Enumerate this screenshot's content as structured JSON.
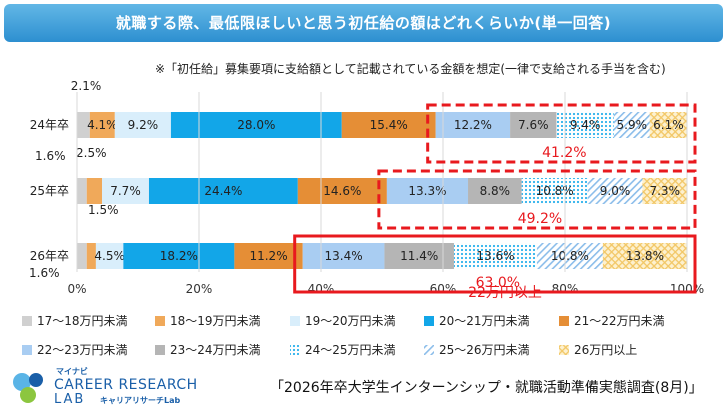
{
  "header": {
    "title": "就職する際、最低限ほしいと思う初任給の額はどれくらいか(単一回答)",
    "note": "※「初任給」募集要項に支給額として記載されている金額を想定(一律で支給される手当を含む)"
  },
  "footer": {
    "survey_title": "「2026年卒大学生インターンシップ・就職活動準備実態調査(8月)」",
    "logo_top": "マイナビ",
    "logo_line1": "CAREER RESEARCH",
    "logo_line2": "LAB",
    "logo_sub": "キャリアリサーチLab"
  },
  "chart_data": {
    "type": "stacked-bar-horizontal",
    "title": "就職する際、最低限ほしいと思う初任給の額はどれくらいか(単一回答)",
    "categories": [
      "24年卒",
      "25年卒",
      "26年卒"
    ],
    "x_ticks": [
      "0%",
      "20%",
      "40%",
      "60%",
      "80%",
      "100%"
    ],
    "xlim": [
      0,
      100
    ],
    "series": [
      {
        "name": "17～18万円未満",
        "color": "#d0d0d0",
        "values": [
          2.1,
          1.6,
          1.6
        ],
        "labels": [
          "2.1%",
          "1.6%",
          "1.6%"
        ],
        "pattern": "solid"
      },
      {
        "name": "18～19万円未満",
        "color": "#f0a95a",
        "values": [
          4.1,
          2.5,
          1.5
        ],
        "labels": [
          "4.1%",
          "2.5%",
          "1.5%"
        ],
        "pattern": "solid"
      },
      {
        "name": "19～20万円未満",
        "color": "#d9eefb",
        "values": [
          9.2,
          7.7,
          4.5
        ],
        "labels": [
          "9.2%",
          "7.7%",
          "4.5%"
        ],
        "pattern": "solid"
      },
      {
        "name": "20～21万円未満",
        "color": "#12a6e8",
        "values": [
          28.0,
          24.4,
          18.2
        ],
        "labels": [
          "28.0%",
          "24.4%",
          "18.2%"
        ],
        "pattern": "solid"
      },
      {
        "name": "21～22万円未満",
        "color": "#e58e36",
        "values": [
          15.4,
          14.6,
          11.2
        ],
        "labels": [
          "15.4%",
          "14.6%",
          "11.2%"
        ],
        "pattern": "solid"
      },
      {
        "name": "22～23万円未満",
        "color": "#a9cdf2",
        "values": [
          12.2,
          13.3,
          13.4
        ],
        "labels": [
          "12.2%",
          "13.3%",
          "13.4%"
        ],
        "pattern": "solid"
      },
      {
        "name": "23～24万円未満",
        "color": "#b5b5b5",
        "values": [
          7.6,
          8.8,
          11.4
        ],
        "labels": [
          "7.6%",
          "8.8%",
          "11.4%"
        ],
        "pattern": "solid"
      },
      {
        "name": "24～25万円未満",
        "color": "#7fd0f5",
        "values": [
          9.4,
          10.8,
          13.6
        ],
        "labels": [
          "9.4%",
          "10.8%",
          "13.6%"
        ],
        "pattern": "dots"
      },
      {
        "name": "25～26万円未満",
        "color": "#9fc9ef",
        "values": [
          5.9,
          9.0,
          10.8
        ],
        "labels": [
          "5.9%",
          "9.0%",
          "10.8%"
        ],
        "pattern": "hatch"
      },
      {
        "name": "26万円以上",
        "color": "#f7d58a",
        "values": [
          6.1,
          7.3,
          13.8
        ],
        "labels": [
          "6.1%",
          "7.3%",
          "13.8%"
        ],
        "pattern": "crosshatch"
      }
    ],
    "highlights": [
      {
        "category": "24年卒",
        "label": "41.2%",
        "from_series": 5,
        "style": "dashed"
      },
      {
        "category": "25年卒",
        "label": "49.2%",
        "from_series": 5,
        "style": "dashed"
      },
      {
        "category": "26年卒",
        "label": "63.0%",
        "from_series": 5,
        "style": "solid"
      }
    ],
    "highlight_caption": "22万円以上",
    "accent_color": "#e8191e",
    "legend_position": "bottom"
  }
}
